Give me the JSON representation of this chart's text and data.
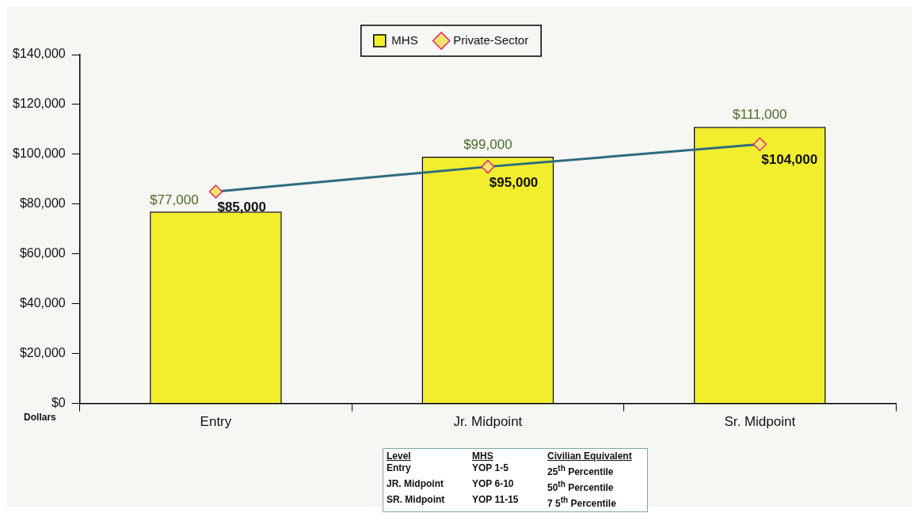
{
  "chart_data": {
    "type": "bar",
    "ylabel": "Dollars",
    "categories": [
      "Entry",
      "Jr. Midpoint",
      "Sr. Midpoint"
    ],
    "series": [
      {
        "name": "MHS",
        "color": "#f2ee2e",
        "values": [
          77000,
          99000,
          111000
        ],
        "value_labels": [
          "$77,000",
          "$99,000",
          "$111,000"
        ]
      },
      {
        "name": "Private-Sector",
        "type": "line",
        "color": "#2f6b80",
        "marker": "diamond",
        "values": [
          85000,
          95000,
          104000
        ],
        "value_labels": [
          "$85,000",
          "$95,000",
          "$104,000"
        ]
      }
    ],
    "ylim": [
      0,
      140000
    ],
    "yticks": [
      {
        "value": 0,
        "label": "$0"
      },
      {
        "value": 20000,
        "label": "$20,000"
      },
      {
        "value": 40000,
        "label": "$40,000"
      },
      {
        "value": 60000,
        "label": "$60,000"
      },
      {
        "value": 80000,
        "label": "$80,000"
      },
      {
        "value": 100000,
        "label": "$100,000"
      },
      {
        "value": 120000,
        "label": "$120,000"
      },
      {
        "value": 140000,
        "label": "$140,000"
      }
    ],
    "grid": false,
    "legend": "top",
    "annotations": [
      "Level",
      "MHS",
      "Civilian Equivalent",
      "Entry",
      "YOP  1-5",
      "25$^{th}$ Percentile",
      "JR. Midpoint",
      "YOP  6-10",
      "50$^{th}$ Percentile",
      "SR. Midpoint",
      "YOP 11-15",
      "7 5$^{th}$ Percentile"
    ]
  }
}
